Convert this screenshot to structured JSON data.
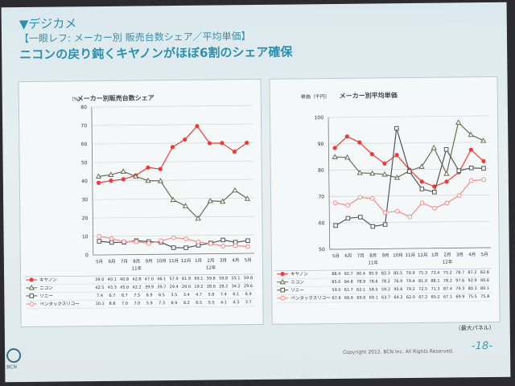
{
  "slide": {
    "section": "▼デジカメ",
    "subtitle": "【一眼レフ: メーカー別 販売台数シェア／平均単価】",
    "headline": "ニコンの戻り鈍くキヤノンがほぼ6割のシェア確保",
    "note": "（最大パネル）",
    "copyright": "Copyright 2012. BCN Inc.  All Rights Reserved.",
    "page": "-18-",
    "logo_text": "BCN"
  },
  "colors": {
    "canon": "#ee3a3a",
    "nikon": "#6b6b52",
    "sony": "#555555",
    "pentax": "#f58a8a"
  },
  "chart_data": [
    {
      "type": "line",
      "title": "メーカー別販売台数シェア",
      "ylabel": "（%）",
      "ylim": [
        0,
        80
      ],
      "yticks": [
        0,
        10,
        20,
        30,
        40,
        50,
        60,
        70,
        80
      ],
      "categories": [
        "5月",
        "6月",
        "7月",
        "8月",
        "9月",
        "10月",
        "11月",
        "12月",
        "1月",
        "2月",
        "3月",
        "4月",
        "5月"
      ],
      "year_labels": [
        "11年",
        "12年"
      ],
      "series": [
        {
          "name": "キヤノン",
          "marker": "circle-filled",
          "values": [
            39.0,
            40.1,
            40.8,
            42.8,
            47.0,
            46.1,
            57.9,
            61.9,
            69.1,
            59.8,
            59.8,
            55.1,
            59.8
          ]
        },
        {
          "name": "ニコン",
          "marker": "triangle",
          "values": [
            42.5,
            43.3,
            45.0,
            42.2,
            39.9,
            39.7,
            29.4,
            26.0,
            19.2,
            28.6,
            28.2,
            34.2,
            29.6
          ]
        },
        {
          "name": "ソニー",
          "marker": "square",
          "values": [
            7.4,
            6.7,
            6.7,
            7.5,
            6.9,
            6.5,
            3.5,
            3.4,
            4.7,
            5.8,
            7.4,
            6.1,
            6.9
          ]
        },
        {
          "name": "ペンタックスリコー",
          "marker": "circle-open",
          "values": [
            10.1,
            8.8,
            7.0,
            7.0,
            5.9,
            7.3,
            8.9,
            8.2,
            6.5,
            5.5,
            4.1,
            4.3,
            3.7
          ]
        }
      ]
    },
    {
      "type": "line",
      "title": "メーカー別平均単価",
      "ylabel": "単価（千円）",
      "ylim": [
        50,
        100
      ],
      "yticks": [
        50,
        60,
        70,
        80,
        90,
        100
      ],
      "categories": [
        "5月",
        "6月",
        "7月",
        "8月",
        "9月",
        "10月",
        "11月",
        "12月",
        "1月",
        "2月",
        "3月",
        "4月",
        "5月"
      ],
      "year_labels": [
        "11年",
        "12年"
      ],
      "series": [
        {
          "name": "キヤノン",
          "marker": "circle-filled",
          "values": [
            88.4,
            92.7,
            90.4,
            85.9,
            82.3,
            85.5,
            79.9,
            75.3,
            73.4,
            75.2,
            78.7,
            87.2,
            82.8
          ]
        },
        {
          "name": "ニコン",
          "marker": "triangle",
          "values": [
            85.0,
            84.8,
            78.9,
            78.6,
            78.2,
            76.9,
            79.4,
            81.0,
            88.1,
            78.2,
            97.6,
            92.9,
            90.6
          ]
        },
        {
          "name": "ソニー",
          "marker": "square",
          "values": [
            59.0,
            61.7,
            62.1,
            58.5,
            59.2,
            95.6,
            79.2,
            72.5,
            71.3,
            87.4,
            79.3,
            80.3,
            80.1
          ]
        },
        {
          "name": "ペンタックスリコー",
          "marker": "circle-open",
          "values": [
            67.6,
            66.6,
            69.6,
            69.1,
            63.7,
            64.2,
            62.0,
            67.2,
            65.2,
            67.1,
            69.9,
            75.5,
            75.8
          ]
        }
      ]
    }
  ]
}
